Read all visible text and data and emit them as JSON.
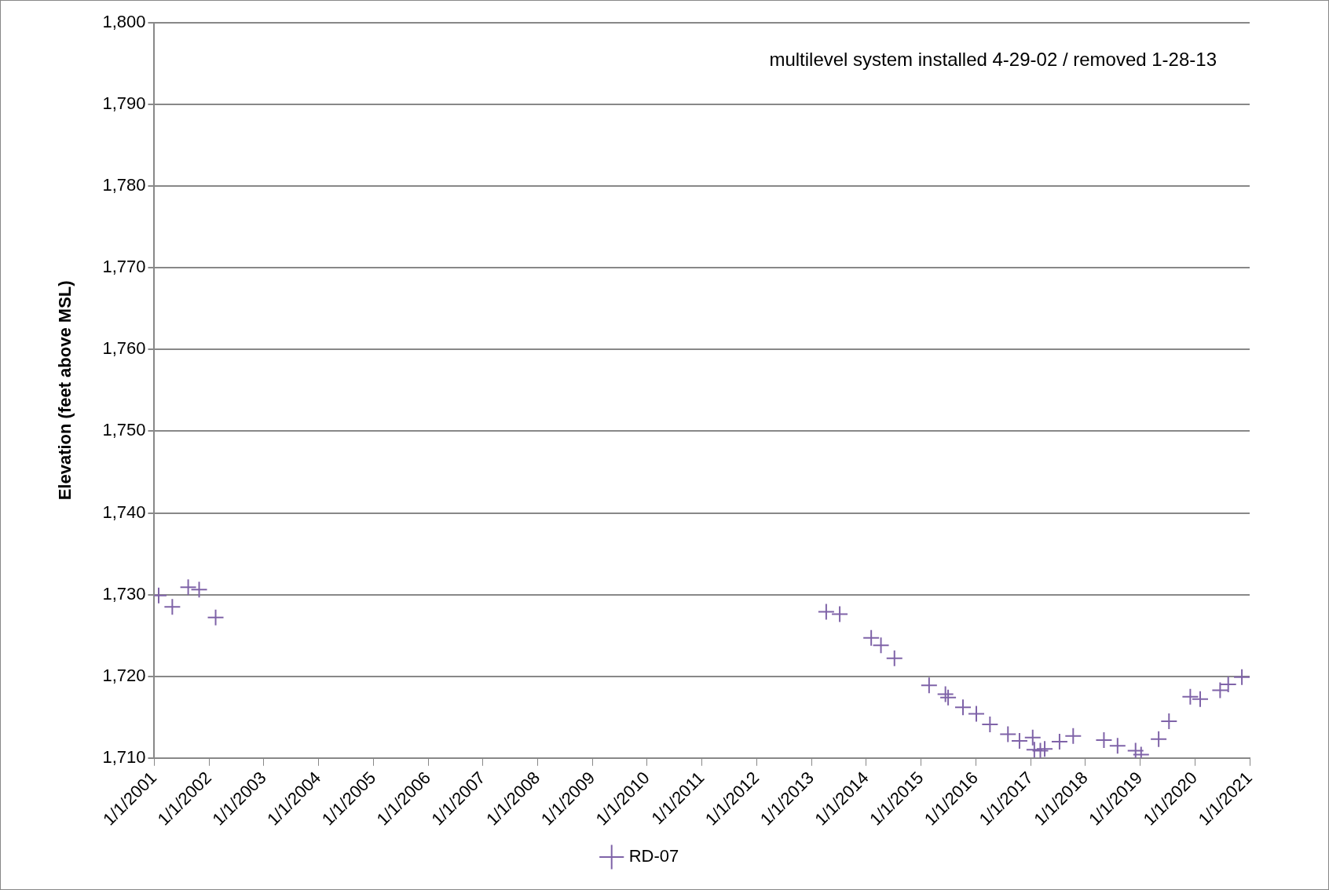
{
  "chart_data": {
    "type": "scatter",
    "ylabel": "Elevation (feet above MSL)",
    "annotations": [
      "multilevel system installed 4-29-02 / removed 1-28-13"
    ],
    "x": [
      "2001-01-30",
      "2001-05-01",
      "2001-08-15",
      "2001-10-27",
      "2002-02-14",
      "2013-04-09",
      "2013-07-08",
      "2014-02-03",
      "2014-04-09",
      "2014-07-08",
      "2015-02-24",
      "2015-06-13",
      "2015-07-01",
      "2015-10-08",
      "2016-01-05",
      "2016-04-05",
      "2016-08-03",
      "2016-10-19",
      "2017-01-15",
      "2017-01-26",
      "2017-03-07",
      "2017-04-05",
      "2017-07-13",
      "2017-10-12",
      "2018-05-05",
      "2018-08-04",
      "2018-12-02",
      "2019-01-08",
      "2019-05-05",
      "2019-07-13",
      "2019-12-02",
      "2020-02-06",
      "2020-06-18",
      "2020-08-11",
      "2020-11-10"
    ],
    "series": [
      {
        "name": "RD-07",
        "color": "#7f63a8",
        "values": [
          1729.9,
          1728.5,
          1730.9,
          1730.6,
          1727.2,
          1727.9,
          1727.6,
          1724.7,
          1723.8,
          1722.2,
          1718.9,
          1717.8,
          1717.4,
          1716.2,
          1715.4,
          1714.1,
          1712.9,
          1712.1,
          1712.5,
          1711.0,
          1710.9,
          1711.1,
          1712.0,
          1712.7,
          1712.2,
          1711.5,
          1710.9,
          1710.4,
          1712.3,
          1714.5,
          1717.5,
          1717.2,
          1718.3,
          1719.0,
          1719.9
        ]
      }
    ],
    "xlim": [
      "2001-01-01",
      "2021-01-01"
    ],
    "xticks": [
      {
        "value": "2001-01-01",
        "label": "1/1/2001"
      },
      {
        "value": "2002-01-01",
        "label": "1/1/2002"
      },
      {
        "value": "2003-01-01",
        "label": "1/1/2003"
      },
      {
        "value": "2004-01-01",
        "label": "1/1/2004"
      },
      {
        "value": "2005-01-01",
        "label": "1/1/2005"
      },
      {
        "value": "2006-01-01",
        "label": "1/1/2006"
      },
      {
        "value": "2007-01-01",
        "label": "1/1/2007"
      },
      {
        "value": "2008-01-01",
        "label": "1/1/2008"
      },
      {
        "value": "2009-01-01",
        "label": "1/1/2009"
      },
      {
        "value": "2010-01-01",
        "label": "1/1/2010"
      },
      {
        "value": "2011-01-01",
        "label": "1/1/2011"
      },
      {
        "value": "2012-01-01",
        "label": "1/1/2012"
      },
      {
        "value": "2013-01-01",
        "label": "1/1/2013"
      },
      {
        "value": "2014-01-01",
        "label": "1/1/2014"
      },
      {
        "value": "2015-01-01",
        "label": "1/1/2015"
      },
      {
        "value": "2016-01-01",
        "label": "1/1/2016"
      },
      {
        "value": "2017-01-01",
        "label": "1/1/2017"
      },
      {
        "value": "2018-01-01",
        "label": "1/1/2018"
      },
      {
        "value": "2019-01-01",
        "label": "1/1/2019"
      },
      {
        "value": "2020-01-01",
        "label": "1/1/2020"
      },
      {
        "value": "2021-01-01",
        "label": "1/1/2021"
      }
    ],
    "ylim": [
      1710,
      1800
    ],
    "yticks": [
      {
        "value": 1710,
        "label": "1,710"
      },
      {
        "value": 1720,
        "label": "1,720"
      },
      {
        "value": 1730,
        "label": "1,730"
      },
      {
        "value": 1740,
        "label": "1,740"
      },
      {
        "value": 1750,
        "label": "1,750"
      },
      {
        "value": 1760,
        "label": "1,760"
      },
      {
        "value": 1770,
        "label": "1,770"
      },
      {
        "value": 1780,
        "label": "1,780"
      },
      {
        "value": 1790,
        "label": "1,790"
      },
      {
        "value": 1800,
        "label": "1,800"
      }
    ],
    "grid": "y",
    "legend": "bottom",
    "marker": "cross"
  }
}
